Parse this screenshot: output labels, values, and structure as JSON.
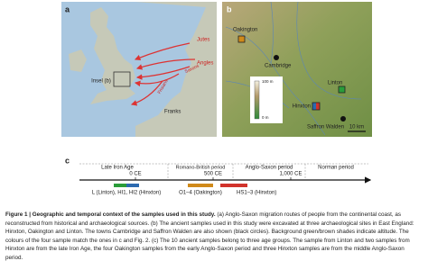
{
  "panel_a": {
    "label": "a",
    "tribes": [
      "Jutes",
      "Angles",
      "Saxons",
      "Frisians"
    ],
    "inset": "Insel (b)",
    "region": "Franks"
  },
  "panel_b": {
    "label": "b",
    "sites": {
      "oakington": "Oakington",
      "cambridge": "Cambridge",
      "saffron_walden": "Saffron Walden",
      "linton": "Linton",
      "hinxton": "Hinxton"
    },
    "altitude_labels": [
      "100 m",
      "0 m"
    ],
    "scale_bar": "10 km"
  },
  "panel_c": {
    "label": "c",
    "periods": [
      "Late Iron Age",
      "Romano-British period",
      "Anglo-Saxon period",
      "Norman period"
    ],
    "ticks": [
      "0 CE",
      "500 CE",
      "1,000 CE"
    ],
    "samples": [
      "L (Linton), HI1, HI2 (Hinxton)",
      "O1–4 (Oakington)",
      "HS1–3 (Hinxton)"
    ]
  },
  "caption": {
    "title": "Figure 1 | Geographic and temporal context of the samples used in this study.",
    "text": "(a) Anglo-Saxon migration routes of people from the continental coast, as reconstructed from historical and archaeological sources. (b) The ancient samples used in this study were excavated at three archaeological sites in East England: Hinxton, Oakington and Linton. The towns Cambridge and Saffron Walden are also shown (black circles). Background green/brown shades indicate altitude. The colours of the four sample match the ones in c and Fig. 2. (c) The 10 ancient samples belong to three age groups. The sample from Linton and two samples from Hinxton are from the late Iron Age, the four Oakington samples from the early Anglo-Saxon period and three Hinxton samples are from the middle Anglo-Saxon period."
  }
}
